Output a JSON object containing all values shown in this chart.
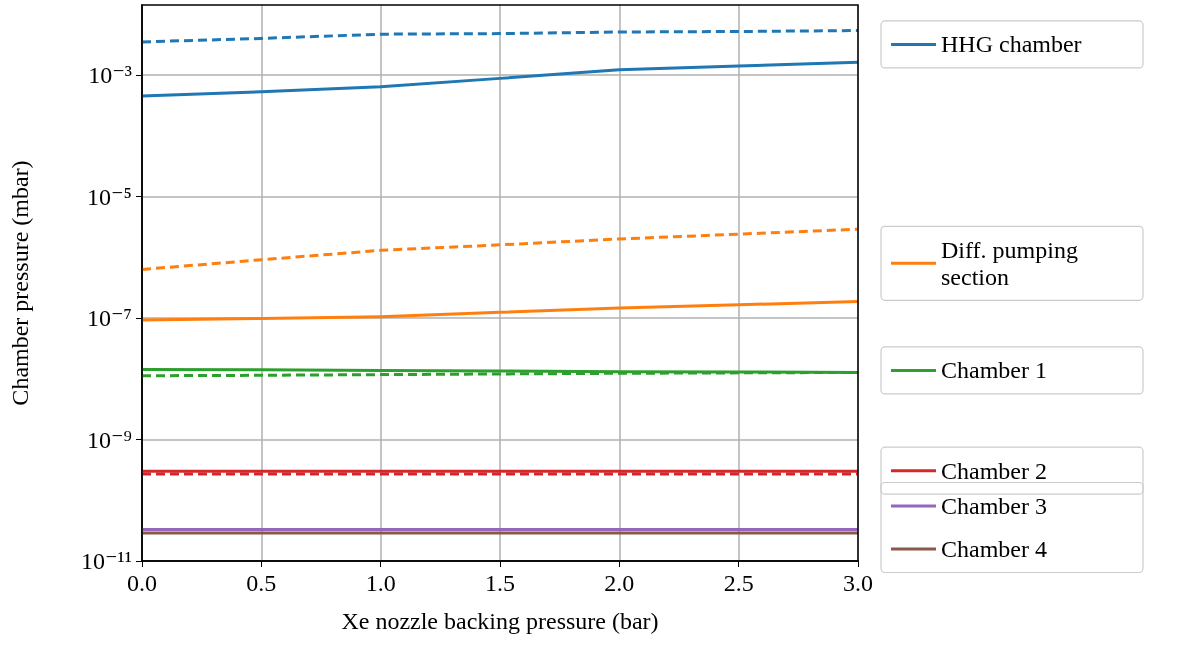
{
  "chart_data": {
    "type": "line",
    "xlabel": "Xe nozzle backing pressure (bar)",
    "ylabel": "Chamber pressure (mbar)",
    "x": [
      0,
      0.5,
      1,
      1.5,
      2,
      2.5,
      3
    ],
    "series": [
      {
        "name": "HHG chamber",
        "color": "#1f77b4",
        "line_style": "solid",
        "values": [
          0.00045,
          0.00053,
          0.00064,
          0.00088,
          0.00122,
          0.00141,
          0.00162
        ]
      },
      {
        "color": "#1f77b4",
        "line_style": "dashed",
        "values": [
          0.0035,
          0.004,
          0.0047,
          0.0048,
          0.0051,
          0.0052,
          0.0054
        ]
      },
      {
        "name": "Diff. pumping section",
        "color": "#ff7f0e",
        "line_style": "solid",
        "values": [
          9.3e-08,
          9.8e-08,
          1.05e-07,
          1.24e-07,
          1.46e-07,
          1.65e-07,
          1.87e-07
        ]
      },
      {
        "color": "#ff7f0e",
        "line_style": "dashed",
        "values": [
          6.3e-07,
          9.1e-07,
          1.3e-06,
          1.6e-06,
          2e-06,
          2.4e-06,
          2.9e-06
        ]
      },
      {
        "name": "Chamber 1",
        "color": "#2ca02c",
        "line_style": "solid",
        "values": [
          1.42e-08,
          1.4e-08,
          1.37e-08,
          1.34e-08,
          1.31e-08,
          1.29e-08,
          1.27e-08
        ]
      },
      {
        "color": "#2ca02c",
        "line_style": "dashed",
        "values": [
          1.12e-08,
          1.14e-08,
          1.17e-08,
          1.2e-08,
          1.23e-08,
          1.25e-08,
          1.27e-08
        ]
      },
      {
        "name": "Chamber 2",
        "color": "#d62728",
        "line_style": "solid",
        "values": [
          3e-10,
          3e-10,
          3e-10,
          3e-10,
          3e-10,
          3e-10,
          3e-10
        ]
      },
      {
        "color": "#d62728",
        "line_style": "dashed",
        "values": [
          2.7e-10,
          2.7e-10,
          2.7e-10,
          2.7e-10,
          2.7e-10,
          2.7e-10,
          2.7e-10
        ]
      },
      {
        "name": "Chamber 3",
        "color": "#9467bd",
        "line_style": "solid",
        "values": [
          3.3e-11,
          3.3e-11,
          3.3e-11,
          3.3e-11,
          3.3e-11,
          3.3e-11,
          3.3e-11
        ]
      },
      {
        "name": "Chamber 4",
        "color": "#8c564b",
        "line_style": "solid",
        "values": [
          2.9e-11,
          2.9e-11,
          2.9e-11,
          2.9e-11,
          2.9e-11,
          2.9e-11,
          2.9e-11
        ]
      }
    ],
    "xlim": [
      0,
      3
    ],
    "xticks": [
      {
        "value": 0,
        "label": "0.0"
      },
      {
        "value": 0.5,
        "label": "0.5"
      },
      {
        "value": 1,
        "label": "1.0"
      },
      {
        "value": 1.5,
        "label": "1.5"
      },
      {
        "value": 2,
        "label": "2.0"
      },
      {
        "value": 2.5,
        "label": "2.5"
      },
      {
        "value": 3,
        "label": "3.0"
      }
    ],
    "ylim": [
      1e-11,
      0.0142
    ],
    "yticks": [
      {
        "value": 1e-11,
        "label": "10⁻¹¹"
      },
      {
        "value": 1e-09,
        "label": "10⁻⁹"
      },
      {
        "value": 1e-07,
        "label": "10⁻⁷"
      },
      {
        "value": 1e-05,
        "label": "10⁻⁵"
      },
      {
        "value": 0.001,
        "label": "10⁻³"
      }
    ],
    "log": "y",
    "grid": true,
    "legend": "right",
    "marker": "none"
  }
}
